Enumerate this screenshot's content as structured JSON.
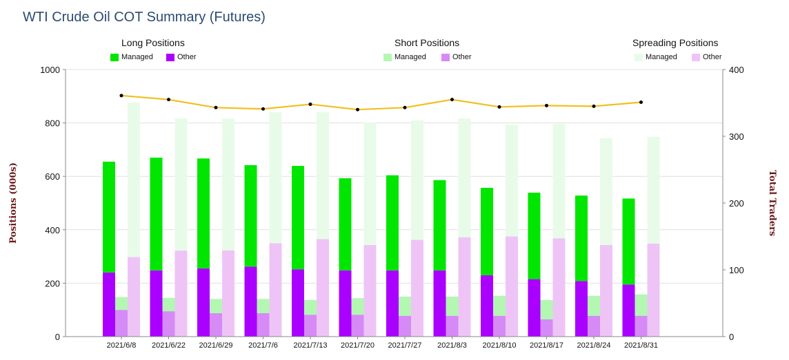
{
  "chart_data": {
    "type": "bar",
    "title": "WTI Crude Oil COT Summary (Futures)",
    "ylabel_left": "Positions (000s)",
    "ylabel_right": "Total Traders",
    "ylim_left": [
      0,
      1000
    ],
    "ylim_right": [
      0,
      400
    ],
    "yticks_left": [
      "0",
      "200",
      "400",
      "600",
      "800",
      "1000"
    ],
    "yticks_right": [
      "0",
      "100",
      "200",
      "300",
      "400"
    ],
    "grid": true,
    "legend_placement": "top",
    "legend_groups": [
      {
        "title": "Long Positions",
        "items": [
          {
            "label": "Managed",
            "color": "#00e600"
          },
          {
            "label": "Other",
            "color": "#aa00ff"
          }
        ]
      },
      {
        "title": "Short Positions",
        "items": [
          {
            "label": "Managed",
            "color": "#b3f7b3"
          },
          {
            "label": "Other",
            "color": "#d58af5"
          }
        ]
      },
      {
        "title": "Spreading Positions",
        "items": [
          {
            "label": "Managed",
            "color": "#e8fbe8"
          },
          {
            "label": "Other",
            "color": "#eec4f7"
          }
        ]
      }
    ],
    "categories": [
      "2021/6/8",
      "2021/6/22",
      "2021/6/29",
      "2021/7/6",
      "2021/7/13",
      "2021/7/20",
      "2021/7/27",
      "2021/8/3",
      "2021/8/10",
      "2021/8/17",
      "2021/8/24",
      "2021/8/31"
    ],
    "series": [
      {
        "group": "long",
        "part": "other",
        "color": "#aa00ff",
        "values": [
          240,
          248,
          255,
          262,
          252,
          248,
          248,
          248,
          230,
          215,
          208,
          195
        ]
      },
      {
        "group": "long",
        "part": "managed",
        "color": "#00e600",
        "values": [
          415,
          422,
          412,
          380,
          387,
          345,
          356,
          338,
          327,
          324,
          320,
          322
        ]
      },
      {
        "group": "short",
        "part": "other",
        "color": "#d58af5",
        "values": [
          100,
          95,
          88,
          88,
          82,
          82,
          78,
          78,
          78,
          65,
          78,
          78
        ]
      },
      {
        "group": "short",
        "part": "managed",
        "color": "#b3f7b3",
        "values": [
          48,
          50,
          53,
          53,
          55,
          62,
          72,
          72,
          75,
          72,
          75,
          80
        ]
      },
      {
        "group": "spreading",
        "part": "other",
        "color": "#eec4f7",
        "values": [
          298,
          322,
          323,
          350,
          365,
          343,
          362,
          372,
          375,
          368,
          343,
          348
        ]
      },
      {
        "group": "spreading",
        "part": "managed",
        "color": "#e8fbe8",
        "values": [
          578,
          495,
          493,
          490,
          475,
          458,
          448,
          445,
          418,
          428,
          400,
          400
        ]
      }
    ],
    "line": {
      "axis": "right",
      "color": "#f0c020",
      "values": [
        361,
        355,
        343,
        341,
        348,
        340,
        343,
        355,
        344,
        346,
        345,
        351
      ]
    }
  }
}
